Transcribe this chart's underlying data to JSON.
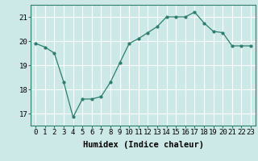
{
  "x": [
    0,
    1,
    2,
    3,
    4,
    5,
    6,
    7,
    8,
    9,
    10,
    11,
    12,
    13,
    14,
    15,
    16,
    17,
    18,
    19,
    20,
    21,
    22,
    23
  ],
  "y": [
    19.9,
    19.75,
    19.5,
    18.3,
    16.85,
    17.6,
    17.6,
    17.7,
    18.3,
    19.1,
    19.9,
    20.1,
    20.35,
    20.6,
    21.0,
    21.0,
    21.0,
    21.2,
    20.75,
    20.4,
    20.35,
    19.8,
    19.8,
    19.8
  ],
  "line_color": "#2e7d6e",
  "marker": "o",
  "markersize": 2.0,
  "linewidth": 0.9,
  "bg_color": "#cce9e8",
  "grid_color": "#ffffff",
  "xlabel": "Humidex (Indice chaleur)",
  "xlabel_fontsize": 7.5,
  "tick_fontsize": 6.5,
  "ylabel_ticks": [
    17,
    18,
    19,
    20,
    21
  ],
  "xlim": [
    -0.5,
    23.5
  ],
  "ylim": [
    16.5,
    21.5
  ]
}
